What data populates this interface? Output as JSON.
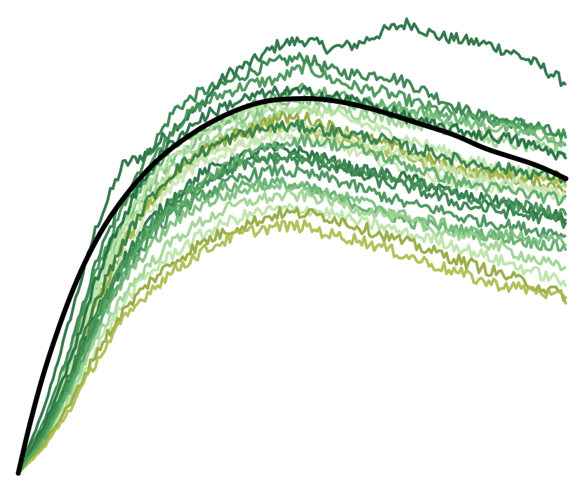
{
  "chart_data": {
    "type": "line",
    "title": "",
    "xlabel": "",
    "ylabel": "",
    "xlim": [
      0,
      1
    ],
    "ylim": [
      0,
      1
    ],
    "grid": false,
    "legend": "none",
    "palette": [
      "#1e6b3c",
      "#2e7d45",
      "#3f8f52",
      "#5aa866",
      "#78bd7a",
      "#9bd28f",
      "#b9e3a6",
      "#8fa637",
      "#a9bb4a",
      "#c8e6b0"
    ],
    "mean_color": "#000000",
    "mean_curve": {
      "x": [
        0.0,
        0.02,
        0.05,
        0.1,
        0.15,
        0.2,
        0.25,
        0.3,
        0.35,
        0.4,
        0.45,
        0.5,
        0.55,
        0.6,
        0.65,
        0.7,
        0.75,
        0.8,
        0.85,
        0.9,
        0.95,
        1.0
      ],
      "y": [
        0.0,
        0.11,
        0.25,
        0.43,
        0.56,
        0.65,
        0.72,
        0.77,
        0.81,
        0.84,
        0.86,
        0.865,
        0.865,
        0.855,
        0.84,
        0.82,
        0.8,
        0.78,
        0.75,
        0.73,
        0.71,
        0.68
      ]
    },
    "series": [
      {
        "values": [
          0.0,
          0.15,
          0.36,
          0.57,
          0.71,
          0.74,
          0.8,
          0.85,
          0.92,
          0.95,
          0.99,
          1.0,
          0.98,
          0.99,
          1.02,
          1.04,
          1.01,
          1.0,
          0.99,
          0.97,
          0.94,
          0.9
        ]
      },
      {
        "values": [
          0.0,
          0.12,
          0.29,
          0.49,
          0.63,
          0.74,
          0.84,
          0.88,
          0.9,
          0.93,
          0.95,
          0.96,
          0.93,
          0.92,
          0.92,
          0.9,
          0.87,
          0.84,
          0.82,
          0.81,
          0.8,
          0.77
        ]
      },
      {
        "values": [
          0.0,
          0.12,
          0.28,
          0.47,
          0.61,
          0.71,
          0.8,
          0.85,
          0.88,
          0.9,
          0.91,
          0.94,
          0.91,
          0.89,
          0.88,
          0.86,
          0.84,
          0.83,
          0.82,
          0.81,
          0.79,
          0.78
        ]
      },
      {
        "values": [
          0.0,
          0.11,
          0.26,
          0.44,
          0.58,
          0.69,
          0.76,
          0.79,
          0.82,
          0.85,
          0.87,
          0.89,
          0.88,
          0.86,
          0.85,
          0.84,
          0.83,
          0.82,
          0.81,
          0.8,
          0.79,
          0.76
        ]
      },
      {
        "values": [
          0.0,
          0.11,
          0.25,
          0.43,
          0.56,
          0.66,
          0.73,
          0.78,
          0.81,
          0.83,
          0.85,
          0.86,
          0.86,
          0.85,
          0.84,
          0.83,
          0.82,
          0.81,
          0.8,
          0.79,
          0.78,
          0.75
        ]
      },
      {
        "values": [
          0.0,
          0.1,
          0.24,
          0.41,
          0.54,
          0.64,
          0.71,
          0.76,
          0.79,
          0.81,
          0.83,
          0.84,
          0.84,
          0.83,
          0.82,
          0.81,
          0.8,
          0.79,
          0.77,
          0.76,
          0.75,
          0.74
        ]
      },
      {
        "values": [
          0.0,
          0.11,
          0.27,
          0.44,
          0.57,
          0.67,
          0.73,
          0.78,
          0.81,
          0.84,
          0.85,
          0.84,
          0.83,
          0.81,
          0.79,
          0.77,
          0.75,
          0.73,
          0.71,
          0.7,
          0.69,
          0.67
        ]
      },
      {
        "values": [
          0.0,
          0.1,
          0.23,
          0.39,
          0.52,
          0.62,
          0.69,
          0.74,
          0.77,
          0.8,
          0.82,
          0.82,
          0.8,
          0.78,
          0.76,
          0.74,
          0.72,
          0.7,
          0.69,
          0.68,
          0.67,
          0.66
        ]
      },
      {
        "values": [
          0.0,
          0.1,
          0.24,
          0.4,
          0.53,
          0.62,
          0.69,
          0.74,
          0.77,
          0.79,
          0.8,
          0.79,
          0.78,
          0.76,
          0.74,
          0.73,
          0.71,
          0.7,
          0.69,
          0.69,
          0.68,
          0.67
        ]
      },
      {
        "values": [
          0.0,
          0.09,
          0.22,
          0.38,
          0.5,
          0.6,
          0.67,
          0.72,
          0.75,
          0.77,
          0.78,
          0.77,
          0.76,
          0.74,
          0.72,
          0.7,
          0.68,
          0.67,
          0.66,
          0.66,
          0.65,
          0.64
        ]
      },
      {
        "values": [
          0.0,
          0.09,
          0.22,
          0.37,
          0.49,
          0.58,
          0.64,
          0.69,
          0.72,
          0.74,
          0.75,
          0.74,
          0.72,
          0.7,
          0.69,
          0.68,
          0.66,
          0.64,
          0.63,
          0.62,
          0.6,
          0.59
        ]
      },
      {
        "values": [
          0.0,
          0.09,
          0.21,
          0.35,
          0.47,
          0.56,
          0.62,
          0.67,
          0.7,
          0.72,
          0.73,
          0.72,
          0.71,
          0.69,
          0.67,
          0.66,
          0.64,
          0.62,
          0.61,
          0.6,
          0.59,
          0.58
        ]
      },
      {
        "values": [
          0.0,
          0.08,
          0.2,
          0.34,
          0.45,
          0.54,
          0.6,
          0.64,
          0.67,
          0.69,
          0.7,
          0.69,
          0.68,
          0.66,
          0.64,
          0.62,
          0.61,
          0.59,
          0.58,
          0.57,
          0.56,
          0.55
        ]
      },
      {
        "values": [
          0.0,
          0.09,
          0.21,
          0.36,
          0.48,
          0.56,
          0.61,
          0.64,
          0.66,
          0.67,
          0.67,
          0.66,
          0.64,
          0.62,
          0.6,
          0.58,
          0.57,
          0.56,
          0.55,
          0.54,
          0.53,
          0.52
        ]
      },
      {
        "values": [
          0.0,
          0.08,
          0.19,
          0.33,
          0.44,
          0.52,
          0.58,
          0.62,
          0.64,
          0.66,
          0.67,
          0.66,
          0.64,
          0.63,
          0.61,
          0.59,
          0.58,
          0.56,
          0.55,
          0.55,
          0.54,
          0.53
        ]
      },
      {
        "values": [
          0.0,
          0.08,
          0.18,
          0.31,
          0.41,
          0.48,
          0.54,
          0.58,
          0.61,
          0.63,
          0.64,
          0.64,
          0.63,
          0.61,
          0.6,
          0.58,
          0.56,
          0.55,
          0.53,
          0.51,
          0.49,
          0.47
        ]
      },
      {
        "values": [
          0.0,
          0.07,
          0.17,
          0.29,
          0.39,
          0.46,
          0.51,
          0.55,
          0.58,
          0.6,
          0.61,
          0.61,
          0.6,
          0.58,
          0.57,
          0.55,
          0.54,
          0.52,
          0.5,
          0.48,
          0.46,
          0.44
        ]
      },
      {
        "values": [
          0.0,
          0.07,
          0.16,
          0.28,
          0.37,
          0.44,
          0.49,
          0.53,
          0.56,
          0.58,
          0.6,
          0.6,
          0.59,
          0.57,
          0.55,
          0.53,
          0.51,
          0.49,
          0.47,
          0.45,
          0.43,
          0.41
        ]
      },
      {
        "values": [
          0.0,
          0.06,
          0.15,
          0.26,
          0.35,
          0.42,
          0.47,
          0.51,
          0.54,
          0.56,
          0.57,
          0.57,
          0.55,
          0.54,
          0.52,
          0.5,
          0.48,
          0.46,
          0.44,
          0.43,
          0.42,
          0.4
        ]
      },
      {
        "values": [
          0.0,
          0.1,
          0.24,
          0.42,
          0.55,
          0.64,
          0.69,
          0.72,
          0.74,
          0.77,
          0.79,
          0.8,
          0.79,
          0.77,
          0.75,
          0.73,
          0.71,
          0.69,
          0.68,
          0.67,
          0.66,
          0.64
        ]
      },
      {
        "values": [
          0.0,
          0.11,
          0.26,
          0.45,
          0.59,
          0.7,
          0.77,
          0.82,
          0.85,
          0.87,
          0.88,
          0.88,
          0.87,
          0.86,
          0.84,
          0.82,
          0.8,
          0.79,
          0.78,
          0.77,
          0.75,
          0.73
        ]
      },
      {
        "values": [
          0.0,
          0.1,
          0.23,
          0.4,
          0.53,
          0.63,
          0.7,
          0.74,
          0.77,
          0.79,
          0.8,
          0.8,
          0.79,
          0.78,
          0.77,
          0.75,
          0.74,
          0.72,
          0.71,
          0.7,
          0.69,
          0.68
        ]
      },
      {
        "values": [
          0.0,
          0.09,
          0.21,
          0.36,
          0.48,
          0.57,
          0.63,
          0.67,
          0.7,
          0.72,
          0.73,
          0.73,
          0.72,
          0.7,
          0.69,
          0.67,
          0.66,
          0.64,
          0.63,
          0.62,
          0.61,
          0.6
        ]
      },
      {
        "values": [
          0.0,
          0.08,
          0.2,
          0.34,
          0.46,
          0.55,
          0.62,
          0.67,
          0.71,
          0.74,
          0.76,
          0.77,
          0.76,
          0.75,
          0.73,
          0.71,
          0.69,
          0.67,
          0.66,
          0.65,
          0.64,
          0.63
        ]
      }
    ]
  }
}
